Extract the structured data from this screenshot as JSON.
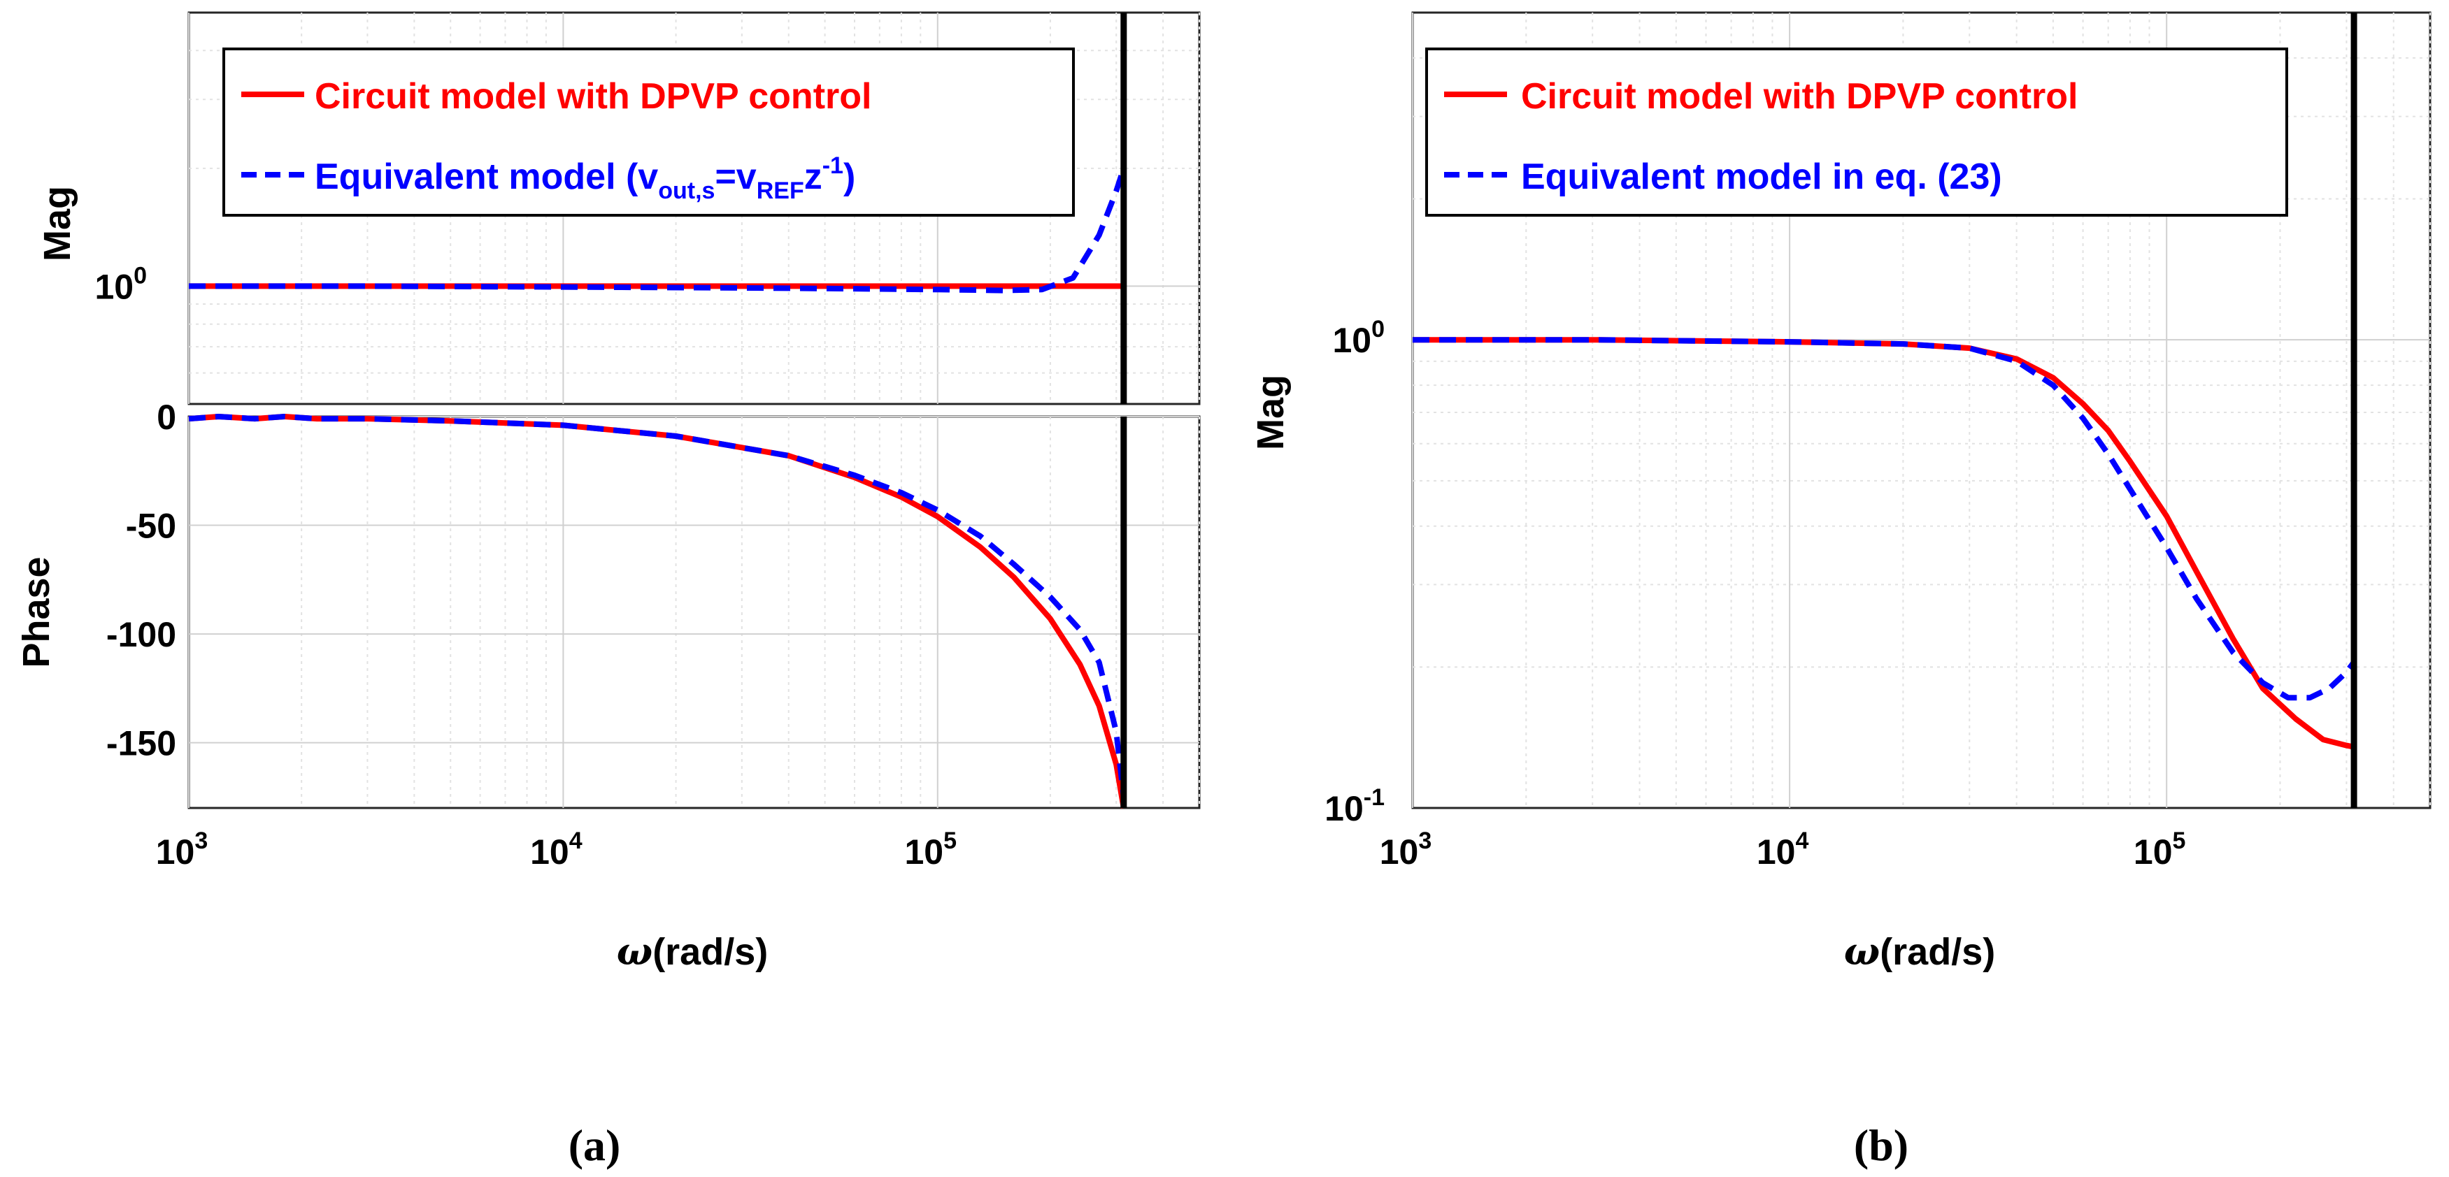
{
  "chart_data": [
    {
      "id": "a",
      "type": "line",
      "caption": "(a)",
      "xscale": "log",
      "xlim": [
        1000,
        500000
      ],
      "xlabel_symbol": "ω",
      "xlabel_text": "(rad/s)",
      "xticks": [
        {
          "value": 1000,
          "base": "10",
          "exp": "3"
        },
        {
          "value": 10000,
          "base": "10",
          "exp": "4"
        },
        {
          "value": 100000,
          "base": "10",
          "exp": "5"
        }
      ],
      "vline_x": 314000,
      "legend": {
        "position": "top",
        "entries": [
          {
            "label": "Circuit model with DPVP control",
            "color": "#ff0000",
            "style": "solid"
          },
          {
            "label_main": "Equivalent model (v",
            "label_sub1": "out,s",
            "label_mid": "=v",
            "label_sub2": "REF",
            "label_z": "z",
            "label_sup": "-1",
            "label_end": ")",
            "color": "#0000ff",
            "style": "dashed"
          }
        ]
      },
      "mag_panel": {
        "ylabel": "Mag",
        "yscale": "log",
        "ylim": [
          0.5,
          5
        ],
        "yticks": [
          {
            "value": 1,
            "base": "10",
            "exp": "0"
          }
        ],
        "series": [
          {
            "name": "Circuit model with DPVP control",
            "color": "#ff0000",
            "style": "solid",
            "x": [
              1000,
              3000,
              10000,
              30000,
              100000,
              200000,
              314000
            ],
            "y": [
              1.0,
              1.0,
              1.0,
              1.0,
              1.0,
              1.0,
              1.0
            ]
          },
          {
            "name": "Equivalent model",
            "color": "#0000ff",
            "style": "dashed",
            "x": [
              1000,
              3000,
              10000,
              30000,
              60000,
              100000,
              150000,
              190000,
              230000,
              270000,
              300000,
              314000
            ],
            "y": [
              1.0,
              1.0,
              0.995,
              0.99,
              0.985,
              0.98,
              0.975,
              0.98,
              1.05,
              1.35,
              1.75,
              2.0
            ]
          }
        ]
      },
      "phase_panel": {
        "ylabel": "Phase",
        "yscale": "linear",
        "ylim": [
          -180,
          0
        ],
        "yticks": [
          0,
          -50,
          -100,
          -150
        ],
        "series": [
          {
            "name": "Circuit model with DPVP control",
            "color": "#ff0000",
            "style": "solid",
            "x": [
              1000,
              1200,
              1500,
              1800,
              2200,
              3000,
              5000,
              10000,
              20000,
              40000,
              60000,
              80000,
              100000,
              130000,
              160000,
              200000,
              240000,
              270000,
              300000,
              314000
            ],
            "y": [
              -1,
              0,
              -1,
              0,
              -1,
              -1,
              -2,
              -4,
              -9,
              -18,
              -28,
              -37,
              -46,
              -60,
              -74,
              -93,
              -114,
              -133,
              -160,
              -180
            ]
          },
          {
            "name": "Equivalent model",
            "color": "#0000ff",
            "style": "dashed",
            "x": [
              1000,
              1200,
              1500,
              1800,
              2200,
              3000,
              5000,
              10000,
              20000,
              40000,
              60000,
              80000,
              100000,
              130000,
              160000,
              200000,
              240000,
              270000,
              300000,
              314000
            ],
            "y": [
              -1,
              0,
              -1,
              0,
              -1,
              -1,
              -2,
              -4,
              -9,
              -18,
              -27,
              -35,
              -43,
              -55,
              -68,
              -83,
              -98,
              -113,
              -145,
              -175
            ]
          }
        ]
      }
    },
    {
      "id": "b",
      "type": "line",
      "caption": "(b)",
      "xscale": "log",
      "xlim": [
        1000,
        500000
      ],
      "xlabel_symbol": "ω",
      "xlabel_text": "(rad/s)",
      "xticks": [
        {
          "value": 1000,
          "base": "10",
          "exp": "3"
        },
        {
          "value": 10000,
          "base": "10",
          "exp": "4"
        },
        {
          "value": 100000,
          "base": "10",
          "exp": "5"
        }
      ],
      "vline_x": 314000,
      "ylabel": "Mag",
      "yscale": "log",
      "ylim": [
        0.1,
        5
      ],
      "yticks": [
        {
          "value": 0.1,
          "base": "10",
          "exp": "-1"
        },
        {
          "value": 1,
          "base": "10",
          "exp": "0"
        }
      ],
      "legend": {
        "position": "top-left",
        "entries": [
          {
            "label": "Circuit model with DPVP control",
            "color": "#ff0000",
            "style": "solid"
          },
          {
            "label": "Equivalent model in eq. (23)",
            "color": "#0000ff",
            "style": "dashed"
          }
        ]
      },
      "series": [
        {
          "name": "Circuit model with DPVP control",
          "color": "#ff0000",
          "style": "solid",
          "x": [
            1000,
            3000,
            10000,
            20000,
            30000,
            40000,
            50000,
            60000,
            70000,
            80000,
            100000,
            120000,
            150000,
            180000,
            220000,
            260000,
            300000,
            314000
          ],
          "y": [
            1.0,
            1.0,
            0.99,
            0.98,
            0.96,
            0.91,
            0.83,
            0.73,
            0.64,
            0.55,
            0.42,
            0.32,
            0.23,
            0.18,
            0.155,
            0.14,
            0.136,
            0.135
          ]
        },
        {
          "name": "Equivalent model in eq. (23)",
          "color": "#0000ff",
          "style": "dashed",
          "x": [
            1000,
            3000,
            10000,
            20000,
            30000,
            40000,
            50000,
            60000,
            70000,
            80000,
            100000,
            120000,
            150000,
            180000,
            210000,
            240000,
            270000,
            300000,
            314000
          ],
          "y": [
            1.0,
            1.0,
            0.99,
            0.98,
            0.96,
            0.9,
            0.8,
            0.68,
            0.57,
            0.48,
            0.36,
            0.28,
            0.215,
            0.185,
            0.172,
            0.172,
            0.18,
            0.195,
            0.205
          ]
        }
      ]
    }
  ]
}
